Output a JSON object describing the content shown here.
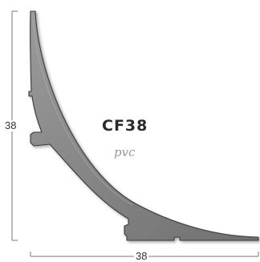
{
  "profile": {
    "code": "CF38",
    "material": "pvc"
  },
  "dimensions": {
    "height_label": "38",
    "width_label": "38"
  },
  "colors": {
    "profile_fill": "#858585",
    "profile_edge": "#3a3a3a",
    "dimension_line": "#777777"
  }
}
